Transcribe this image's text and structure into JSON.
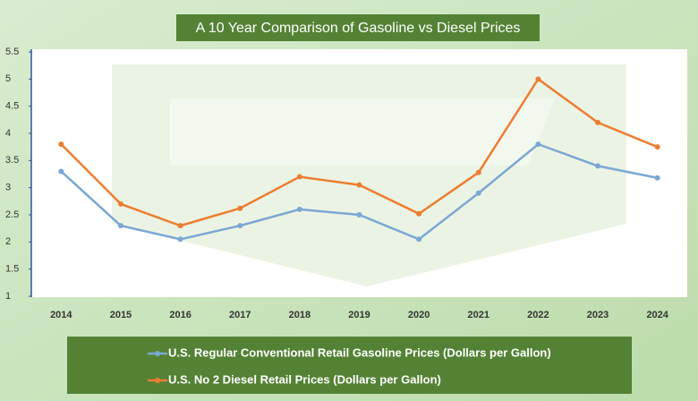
{
  "chart_data": {
    "type": "line",
    "title": "A 10 Year Comparison of Gasoline vs Diesel Prices",
    "categories": [
      "2014",
      "2015",
      "2016",
      "2017",
      "2018",
      "2019",
      "2020",
      "2021",
      "2022",
      "2023",
      "2024"
    ],
    "series": [
      {
        "name": "U.S. Regular Conventional Retail Gasoline Prices (Dollars per Gallon)",
        "color": "#7ba7d4",
        "values": [
          3.3,
          2.3,
          2.05,
          2.3,
          2.6,
          2.5,
          2.05,
          2.9,
          3.8,
          3.4,
          3.18
        ]
      },
      {
        "name": "U.S. No 2 Diesel Retail Prices (Dollars per Gallon)",
        "color": "#ed7d31",
        "values": [
          3.8,
          2.7,
          2.3,
          2.62,
          3.2,
          3.05,
          2.52,
          3.28,
          5.0,
          4.2,
          3.75
        ]
      }
    ],
    "ylim": [
      1,
      5.5
    ],
    "yticks": [
      1,
      1.5,
      2,
      2.5,
      3,
      3.5,
      4,
      4.5,
      5,
      5.5
    ],
    "grid": false
  }
}
